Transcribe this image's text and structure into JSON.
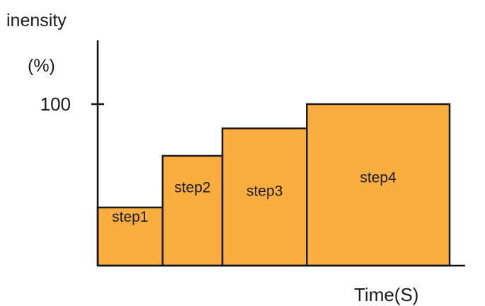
{
  "chart_data": {
    "type": "bar",
    "ylabel_lines": [
      "inensity",
      "(%)"
    ],
    "xlabel": "Time(S)",
    "y_ticks": [
      {
        "value": 100,
        "label": "100"
      }
    ],
    "ylim": [
      0,
      132
    ],
    "grid": false,
    "legend": "none",
    "bar_color": "#f9ae3f",
    "bars": [
      {
        "label": "step1",
        "value": 36,
        "duration": 1.0
      },
      {
        "label": "step2",
        "value": 68,
        "duration": 0.92
      },
      {
        "label": "step3",
        "value": 85,
        "duration": 1.3
      },
      {
        "label": "step4",
        "value": 100,
        "duration": 2.2
      }
    ]
  }
}
